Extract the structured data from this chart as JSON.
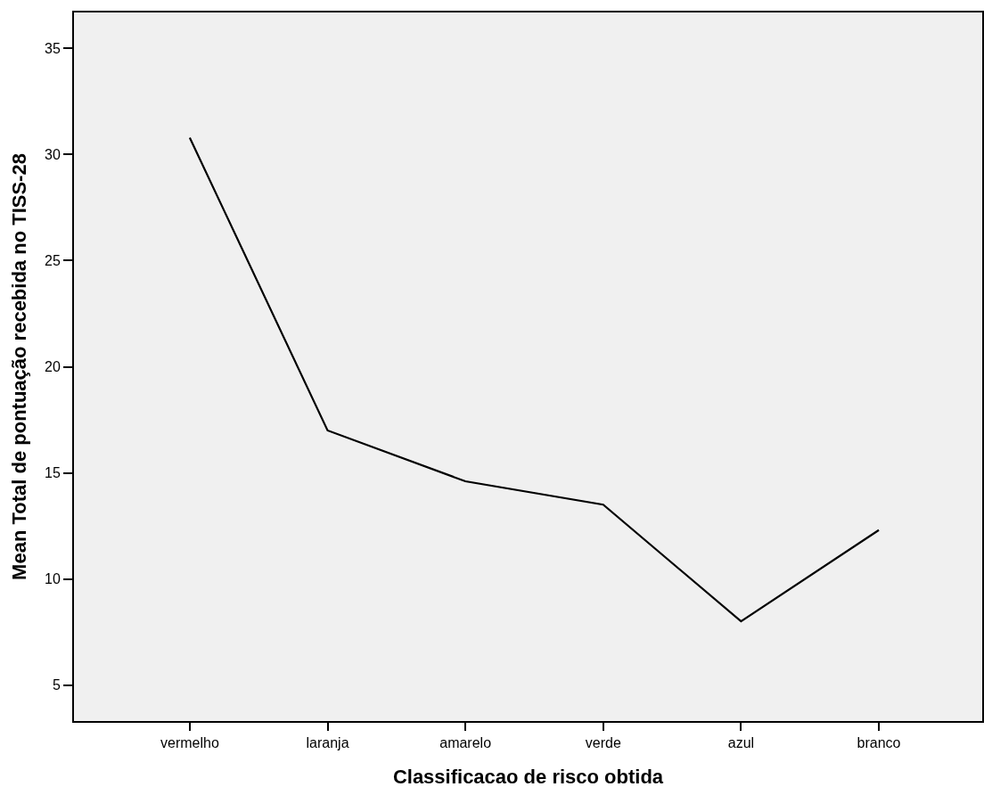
{
  "chart_data": {
    "type": "line",
    "xlabel": "Classificacao de risco obtida",
    "ylabel": "Mean Total de pontuação recebida no TISS-28",
    "categories": [
      "vermelho",
      "laranja",
      "amarelo",
      "verde",
      "azul",
      "branco"
    ],
    "series": [
      {
        "color": "#000000",
        "values": [
          30.8,
          17.0,
          14.6,
          13.5,
          8.0,
          12.3
        ]
      }
    ],
    "ylim": [
      3.3,
      36.7
    ],
    "yticks": [
      5,
      10,
      15,
      20,
      25,
      30,
      35
    ],
    "grid": false,
    "marker": "none",
    "line_style": "solid"
  }
}
